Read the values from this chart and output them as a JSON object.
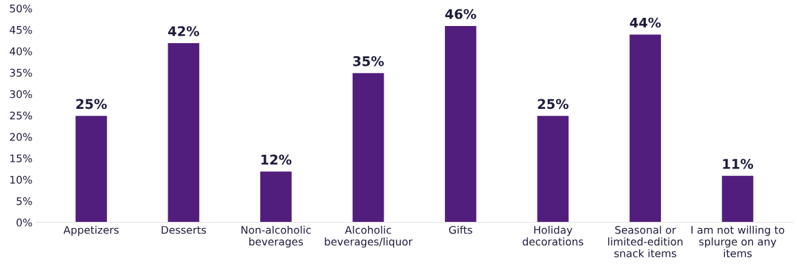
{
  "chart_data": {
    "type": "bar",
    "categories": [
      "Appetizers",
      "Desserts",
      "Non-alcoholic\nbeverages",
      "Alcoholic\nbeverages/liquor",
      "Gifts",
      "Holiday\ndecorations",
      "Seasonal or\nlimited-edition\nsnack items",
      "I am not willing to\nsplurge on any\nitems"
    ],
    "values": [
      25,
      42,
      12,
      35,
      46,
      25,
      44,
      11
    ],
    "value_labels": [
      "25%",
      "42%",
      "12%",
      "35%",
      "46%",
      "25%",
      "44%",
      "11%"
    ],
    "color": "#521e7d",
    "ylim": [
      0,
      50
    ],
    "yticks": [
      {
        "value": 0,
        "label": "0%"
      },
      {
        "value": 5,
        "label": "5%"
      },
      {
        "value": 10,
        "label": "10%"
      },
      {
        "value": 15,
        "label": "15%"
      },
      {
        "value": 20,
        "label": "20%"
      },
      {
        "value": 25,
        "label": "25%"
      },
      {
        "value": 30,
        "label": "30%"
      },
      {
        "value": 35,
        "label": "35%"
      },
      {
        "value": 40,
        "label": "40%"
      },
      {
        "value": 45,
        "label": "45%"
      },
      {
        "value": 50,
        "label": "50%"
      }
    ],
    "grid": false
  }
}
